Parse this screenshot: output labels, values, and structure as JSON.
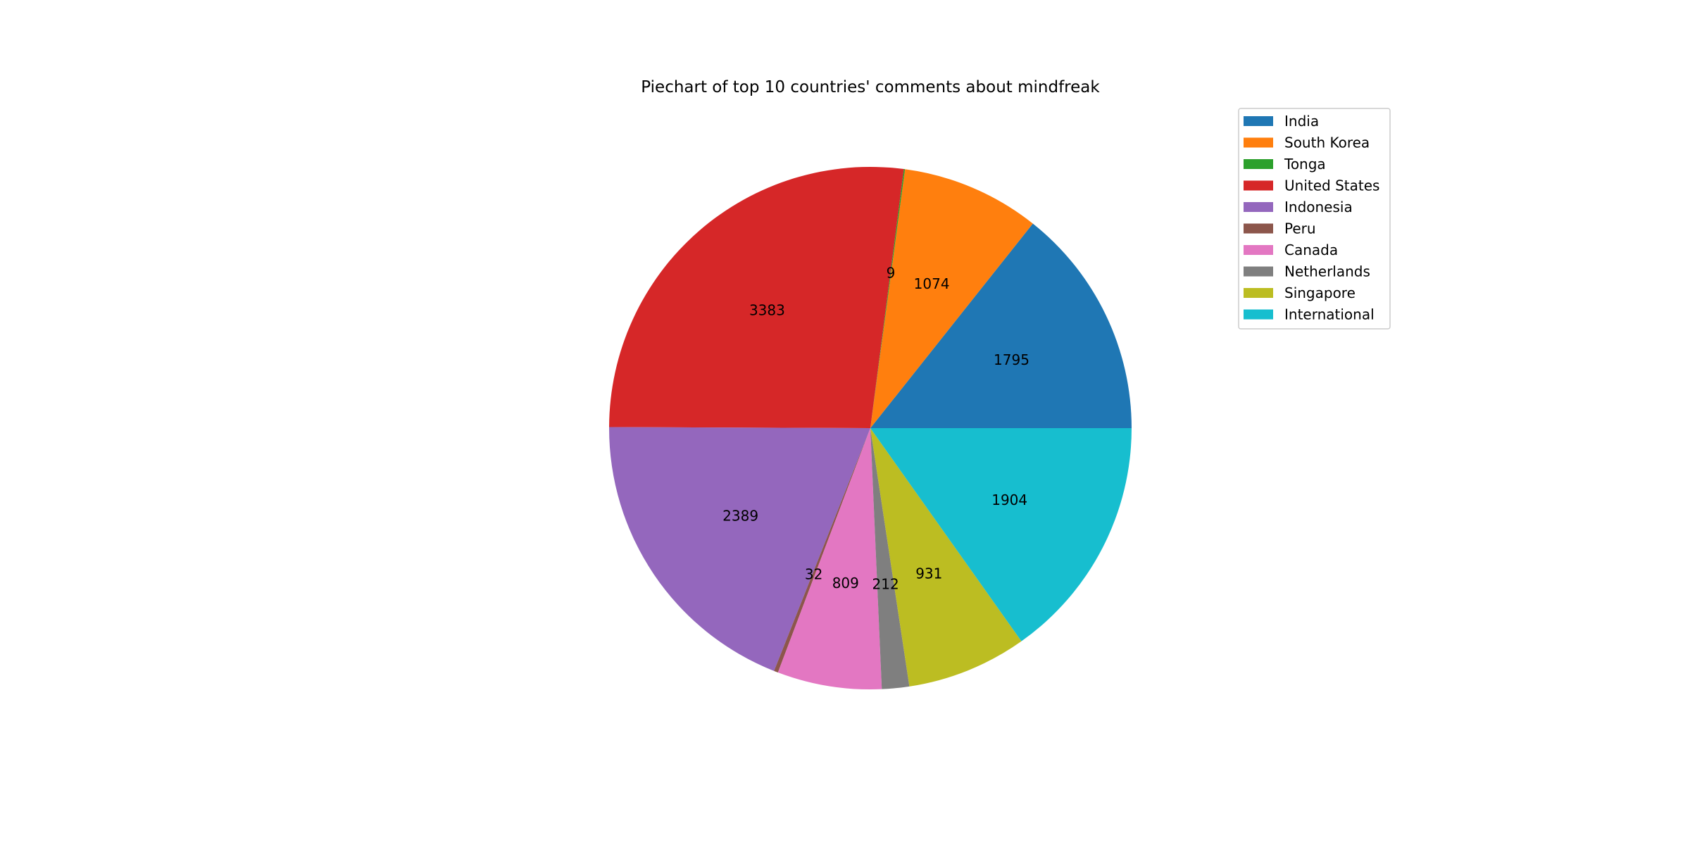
{
  "chart_data": {
    "type": "pie",
    "title": "Piechart of top 10 countries' comments about mindfreak",
    "categories": [
      "India",
      "South Korea",
      "Tonga",
      "United States",
      "Indonesia",
      "Peru",
      "Canada",
      "Netherlands",
      "Singapore",
      "International"
    ],
    "values": [
      1795,
      1074,
      9,
      3383,
      2389,
      32,
      809,
      212,
      931,
      1904
    ],
    "value_labels": [
      "1795",
      "1074",
      "9",
      "3383",
      "2389",
      "32",
      "809",
      "212",
      "931",
      "1904"
    ],
    "colors": [
      "#1f77b4",
      "#ff7f0e",
      "#2ca02c",
      "#d62728",
      "#9467bd",
      "#8c564b",
      "#e377c2",
      "#7f7f7f",
      "#bcbd22",
      "#17becf"
    ],
    "start_angle_deg": 0,
    "direction": "counterclockwise",
    "legend": {
      "position": "upper-right",
      "entries": [
        "India",
        "South Korea",
        "Tonga",
        "United States",
        "Indonesia",
        "Peru",
        "Canada",
        "Netherlands",
        "Singapore",
        "International"
      ]
    }
  }
}
